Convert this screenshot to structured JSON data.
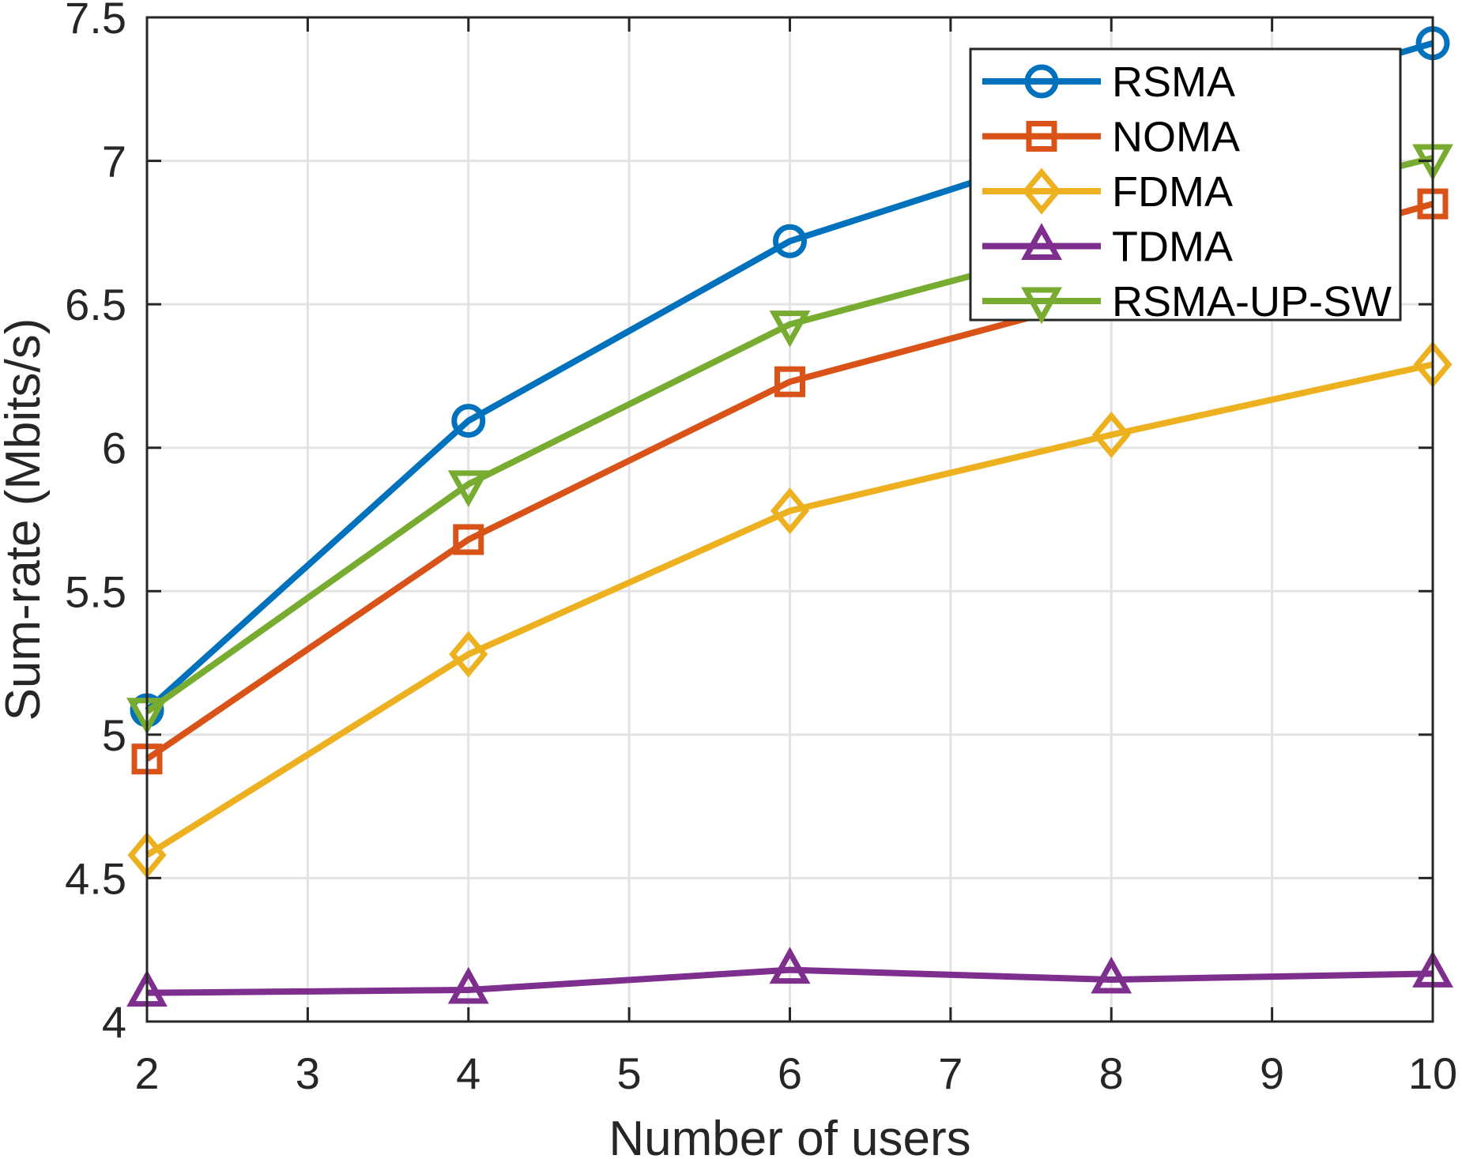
{
  "chart_data": {
    "type": "line",
    "title": "",
    "xlabel": "Number of users",
    "ylabel": "Sum-rate (Mbits/s)",
    "xlim": [
      2,
      10
    ],
    "ylim": [
      4,
      7.5
    ],
    "xticks": [
      2,
      3,
      4,
      5,
      6,
      7,
      8,
      9,
      10
    ],
    "xtick_labels": [
      "2",
      "3",
      "4",
      "5",
      "6",
      "7",
      "8",
      "9",
      "10"
    ],
    "yticks": [
      4,
      4.5,
      5,
      5.5,
      6,
      6.5,
      7,
      7.5
    ],
    "ytick_labels": [
      "4",
      "4.5",
      "5",
      "5.5",
      "6",
      "6.5",
      "7",
      "7.5"
    ],
    "grid": true,
    "legend_position": "top-right",
    "x": [
      2,
      4,
      6,
      8,
      10
    ],
    "series": [
      {
        "name": "RSMA",
        "marker": "circle",
        "color": "#0072BD",
        "values": [
          5.085,
          6.094,
          6.72,
          7.08,
          7.41
        ]
      },
      {
        "name": "NOMA",
        "marker": "square",
        "color": "#D95319",
        "values": [
          4.915,
          5.68,
          6.23,
          6.53,
          6.85
        ]
      },
      {
        "name": "FDMA",
        "marker": "diamond",
        "color": "#EDB120",
        "values": [
          4.58,
          5.28,
          5.78,
          6.045,
          6.29
        ]
      },
      {
        "name": "TDMA",
        "marker": "triangle-up",
        "color": "#7E2F8E",
        "values": [
          4.1,
          4.11,
          4.18,
          4.146,
          4.167
        ]
      },
      {
        "name": "RSMA-UP-SW",
        "marker": "triangle-down",
        "color": "#77AC30",
        "values": [
          5.08,
          5.873,
          6.43,
          6.73,
          7.01
        ]
      }
    ]
  }
}
